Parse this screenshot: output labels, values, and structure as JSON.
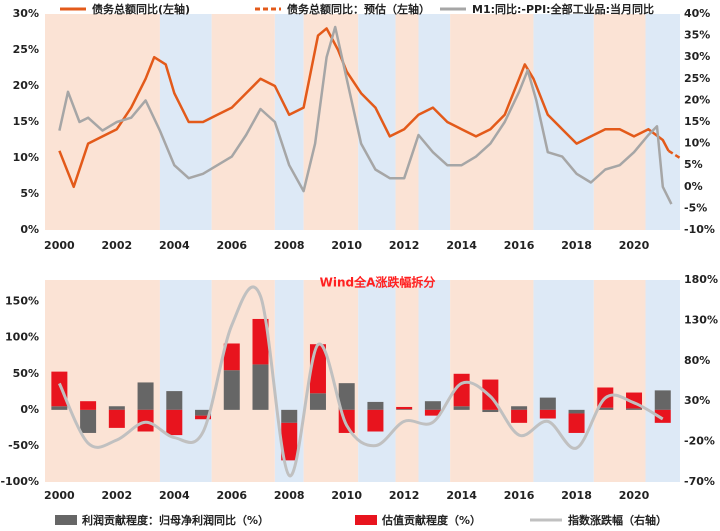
{
  "chart_data": [
    {
      "type": "line",
      "legend": "top",
      "bands": [
        {
          "start": 1999.5,
          "end": 2003.5,
          "color": "#fbe3d5"
        },
        {
          "start": 2003.5,
          "end": 2005.3,
          "color": "#dde9f6"
        },
        {
          "start": 2005.3,
          "end": 2007.5,
          "color": "#fbe3d5"
        },
        {
          "start": 2007.5,
          "end": 2008.5,
          "color": "#dde9f6"
        },
        {
          "start": 2008.5,
          "end": 2010.4,
          "color": "#fbe3d5"
        },
        {
          "start": 2010.4,
          "end": 2011.7,
          "color": "#dde9f6"
        },
        {
          "start": 2011.7,
          "end": 2012.5,
          "color": "#fbe3d5"
        },
        {
          "start": 2012.5,
          "end": 2013.6,
          "color": "#dde9f6"
        },
        {
          "start": 2013.6,
          "end": 2016.5,
          "color": "#fbe3d5"
        },
        {
          "start": 2016.5,
          "end": 2018.6,
          "color": "#dde9f6"
        },
        {
          "start": 2018.6,
          "end": 2020.4,
          "color": "#fbe3d5"
        },
        {
          "start": 2020.4,
          "end": 2021.6,
          "color": "#dde9f6"
        }
      ],
      "series": [
        {
          "name": "债务总额同比(左轴)",
          "color": "#e35a1a",
          "x": [
            2000,
            2000.5,
            2001,
            2001.5,
            2002,
            2002.5,
            2003,
            2003.3,
            2003.7,
            2004,
            2004.5,
            2005,
            2005.5,
            2006,
            2006.5,
            2007,
            2007.5,
            2008,
            2008.5,
            2009,
            2009.3,
            2009.7,
            2010,
            2010.5,
            2011,
            2011.5,
            2012,
            2012.5,
            2013,
            2013.5,
            2014,
            2014.5,
            2015,
            2015.5,
            2016,
            2016.2,
            2016.5,
            2017,
            2017.5,
            2018,
            2018.5,
            2019,
            2019.5,
            2020,
            2020.5,
            2021,
            2021.2
          ],
          "values": [
            11,
            6,
            12,
            13,
            14,
            17,
            21,
            24,
            23,
            19,
            15,
            15,
            16,
            17,
            19,
            21,
            20,
            16,
            17,
            27,
            28,
            25,
            22,
            19,
            17,
            13,
            14,
            16,
            17,
            15,
            14,
            13,
            14,
            16,
            21,
            23,
            21,
            16,
            14,
            12,
            13,
            14,
            14,
            13,
            14,
            12.5,
            11
          ]
        },
        {
          "name": "债务总额同比：预估（左轴）",
          "color": "#e35a1a",
          "dash": true,
          "x": [
            2021.2,
            2021.6
          ],
          "values": [
            11,
            10
          ]
        },
        {
          "name": "M1:同比:-PPI:全部工业品:当月同比",
          "color": "#a6a6a6",
          "axis": "y2",
          "x": [
            2000,
            2000.3,
            2000.7,
            2001,
            2001.5,
            2002,
            2002.5,
            2003,
            2003.5,
            2004,
            2004.5,
            2005,
            2005.5,
            2006,
            2006.5,
            2007,
            2007.5,
            2008,
            2008.5,
            2008.9,
            2009.3,
            2009.6,
            2010,
            2010.5,
            2011,
            2011.5,
            2012,
            2012.5,
            2013,
            2013.5,
            2014,
            2014.5,
            2015,
            2015.5,
            2016,
            2016.3,
            2016.6,
            2017,
            2017.5,
            2018,
            2018.5,
            2019,
            2019.5,
            2020,
            2020.5,
            2020.8,
            2021,
            2021.3
          ],
          "values": [
            13,
            22,
            15,
            16,
            13,
            15,
            16,
            20,
            13,
            5,
            2,
            3,
            5,
            7,
            12,
            18,
            15,
            5,
            -1,
            10,
            30,
            37,
            25,
            10,
            4,
            2,
            2,
            12,
            8,
            5,
            5,
            7,
            10,
            15,
            22,
            27,
            20,
            8,
            7,
            3,
            1,
            4,
            5,
            8,
            12,
            14,
            0,
            -4
          ]
        }
      ],
      "xlim": [
        1999.5,
        2021.6
      ],
      "xticks": [
        2000,
        2002,
        2004,
        2006,
        2008,
        2010,
        2012,
        2014,
        2016,
        2018,
        2020
      ],
      "ylim": [
        0,
        30
      ],
      "yticks": [
        {
          "value": 0,
          "label": "0%"
        },
        {
          "value": 5,
          "label": "5%"
        },
        {
          "value": 10,
          "label": "10%"
        },
        {
          "value": 15,
          "label": "15%"
        },
        {
          "value": 20,
          "label": "20%"
        },
        {
          "value": 25,
          "label": "25%"
        },
        {
          "value": 30,
          "label": "30%"
        }
      ],
      "y2lim": [
        -10,
        40
      ],
      "y2ticks": [
        {
          "value": -10,
          "label": "-10%"
        },
        {
          "value": -5,
          "label": "-5%"
        },
        {
          "value": 0,
          "label": "0%"
        },
        {
          "value": 5,
          "label": "5%"
        },
        {
          "value": 10,
          "label": "10%"
        },
        {
          "value": 15,
          "label": "15%"
        },
        {
          "value": 20,
          "label": "20%"
        },
        {
          "value": 25,
          "label": "25%"
        },
        {
          "value": 30,
          "label": "30%"
        },
        {
          "value": 35,
          "label": "35%"
        },
        {
          "value": 40,
          "label": "40%"
        }
      ]
    },
    {
      "type": "bar",
      "title": "Wind全A涨跌幅拆分",
      "legend": "bottom",
      "stacked": true,
      "bands": [
        {
          "start": 1999.5,
          "end": 2003.5,
          "color": "#fbe3d5"
        },
        {
          "start": 2003.5,
          "end": 2005.3,
          "color": "#dde9f6"
        },
        {
          "start": 2005.3,
          "end": 2007.5,
          "color": "#fbe3d5"
        },
        {
          "start": 2007.5,
          "end": 2008.5,
          "color": "#dde9f6"
        },
        {
          "start": 2008.5,
          "end": 2010.4,
          "color": "#fbe3d5"
        },
        {
          "start": 2010.4,
          "end": 2011.7,
          "color": "#dde9f6"
        },
        {
          "start": 2011.7,
          "end": 2012.5,
          "color": "#fbe3d5"
        },
        {
          "start": 2012.5,
          "end": 2013.6,
          "color": "#dde9f6"
        },
        {
          "start": 2013.6,
          "end": 2016.5,
          "color": "#fbe3d5"
        },
        {
          "start": 2016.5,
          "end": 2018.6,
          "color": "#dde9f6"
        },
        {
          "start": 2018.6,
          "end": 2020.4,
          "color": "#fbe3d5"
        },
        {
          "start": 2020.4,
          "end": 2021.6,
          "color": "#dde9f6"
        }
      ],
      "x": [
        2000,
        2001,
        2002,
        2003,
        2004,
        2005,
        2006,
        2007,
        2008,
        2009,
        2010,
        2011,
        2012,
        2013,
        2014,
        2015,
        2016,
        2017,
        2018,
        2019,
        2020,
        2021
      ],
      "series": [
        {
          "name": "利润贡献程度：归母净利润同比（%）",
          "color": "#666666",
          "values": [
            5,
            -32,
            5,
            38,
            26,
            -8,
            55,
            63,
            -18,
            23,
            37,
            11,
            1,
            12,
            5,
            -3,
            5,
            17,
            -5,
            3,
            2,
            27
          ]
        },
        {
          "name": "估值贡献程度（%）",
          "color": "#e8141e",
          "values": [
            48,
            12,
            -25,
            -30,
            -35,
            -5,
            37,
            63,
            -52,
            68,
            -32,
            -30,
            3,
            -8,
            45,
            42,
            -18,
            -12,
            -27,
            28,
            22,
            -18
          ]
        },
        {
          "name": "指数涨跌幅（右轴）",
          "color": "#c0c0c0",
          "axis": "y2",
          "kind": "line",
          "values": [
            52,
            -22,
            -18,
            4,
            -15,
            -8,
            124,
            160,
            -62,
            100,
            0,
            -25,
            5,
            4,
            52,
            36,
            -12,
            5,
            -28,
            34,
            28,
            8
          ]
        }
      ],
      "xlim": [
        1999.5,
        2021.6
      ],
      "xticks": [
        2000,
        2002,
        2004,
        2006,
        2008,
        2010,
        2012,
        2014,
        2016,
        2018,
        2020
      ],
      "ylim": [
        -100,
        180
      ],
      "yticks": [
        {
          "value": -100,
          "label": "-100%"
        },
        {
          "value": -50,
          "label": "-50%"
        },
        {
          "value": 0,
          "label": "0%"
        },
        {
          "value": 50,
          "label": "50%"
        },
        {
          "value": 100,
          "label": "100%"
        },
        {
          "value": 150,
          "label": "150%"
        }
      ],
      "y2lim": [
        -70,
        180
      ],
      "y2ticks": [
        {
          "value": -70,
          "label": "-70%"
        },
        {
          "value": -20,
          "label": "-20%"
        },
        {
          "value": 30,
          "label": "30%"
        },
        {
          "value": 80,
          "label": "80%"
        },
        {
          "value": 130,
          "label": "130%"
        },
        {
          "value": 180,
          "label": "180%"
        }
      ]
    }
  ]
}
